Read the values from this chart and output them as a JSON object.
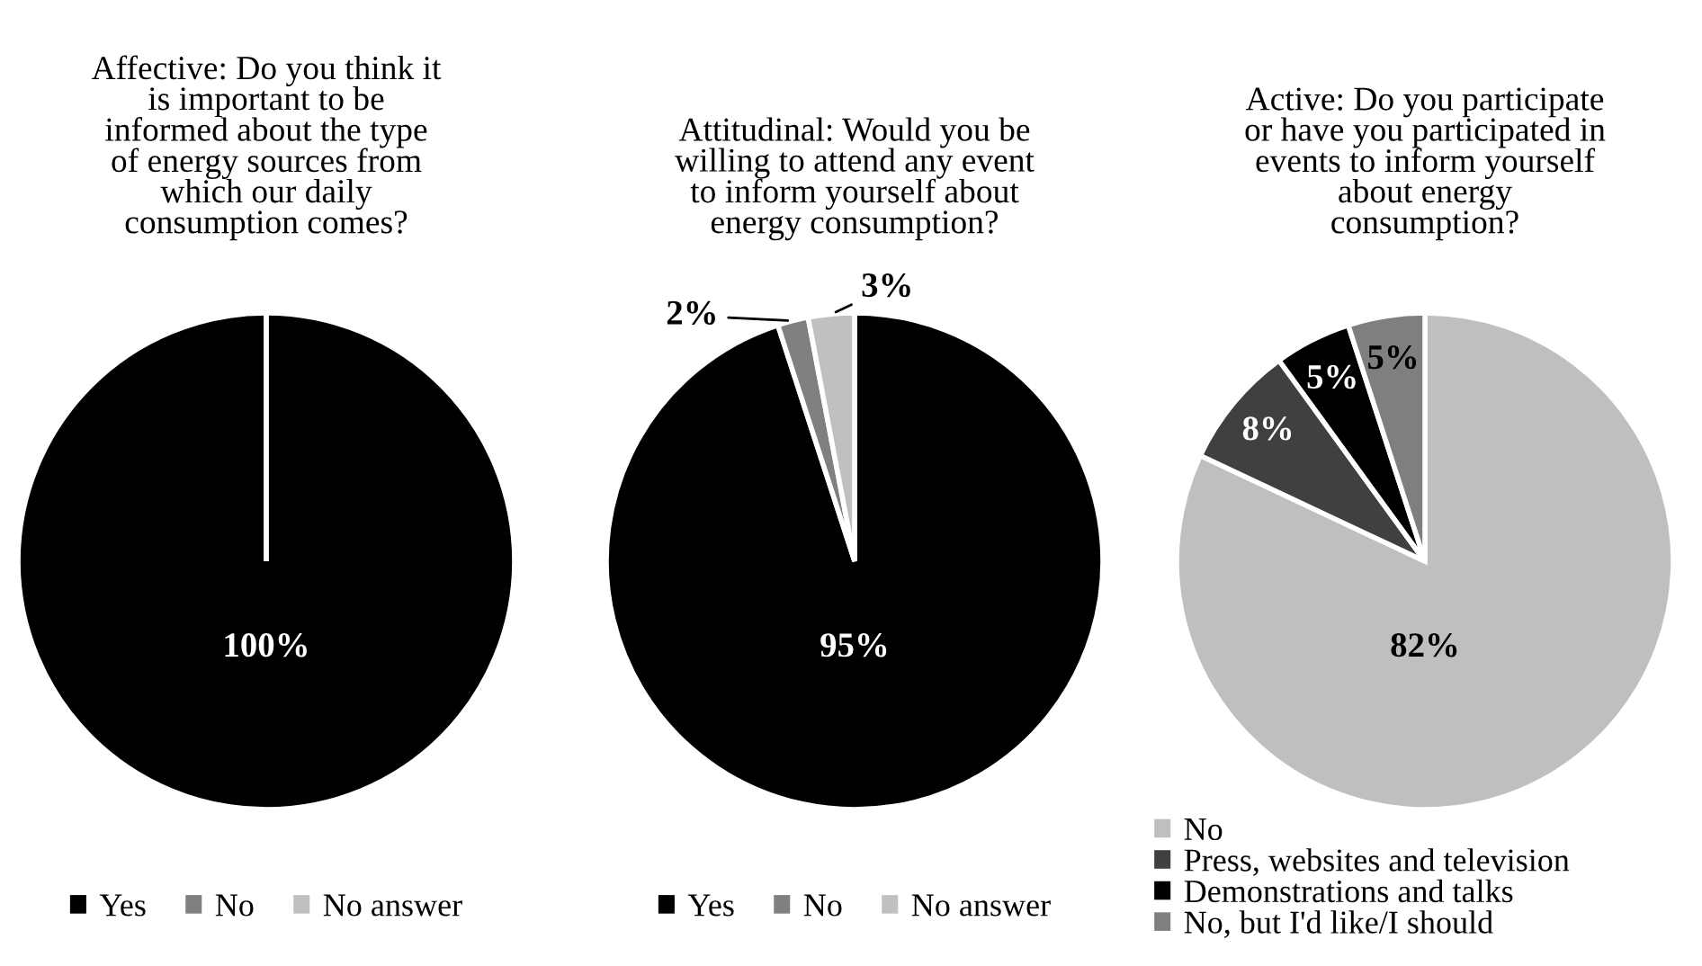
{
  "chart_data": [
    {
      "type": "pie",
      "title": "Affective: Do you think it\nis important to be\ninformed about the type\nof energy sources from\nwhich our daily\nconsumption comes?",
      "categories": [
        "Yes",
        "No",
        "No answer"
      ],
      "values": [
        100,
        0,
        0
      ],
      "colors": [
        "#000000",
        "#808080",
        "#c0c0c0"
      ],
      "value_labels": [
        "100%",
        null,
        null
      ],
      "legend": "bottom"
    },
    {
      "type": "pie",
      "title": "Attitudinal: Would you be\nwilling to attend any event\nto inform yourself about\nenergy consumption?",
      "categories": [
        "Yes",
        "No",
        "No answer"
      ],
      "values": [
        95,
        2,
        3
      ],
      "colors": [
        "#000000",
        "#808080",
        "#c0c0c0"
      ],
      "value_labels": [
        "95%",
        "2%",
        "3%"
      ],
      "legend": "bottom"
    },
    {
      "type": "pie",
      "title": "Active: Do you participate\nor have you participated in\nevents to inform yourself\nabout energy\nconsumption?",
      "categories": [
        "No",
        "Press, websites and television",
        "Demonstrations and talks",
        "No, but I'd like/I should"
      ],
      "values": [
        82,
        8,
        5,
        5
      ],
      "colors": [
        "#bfbfbf",
        "#404040",
        "#000000",
        "#7f7f7f"
      ],
      "value_labels": [
        "82%",
        "8%",
        "5%",
        "5%"
      ],
      "legend": "bottom"
    }
  ]
}
